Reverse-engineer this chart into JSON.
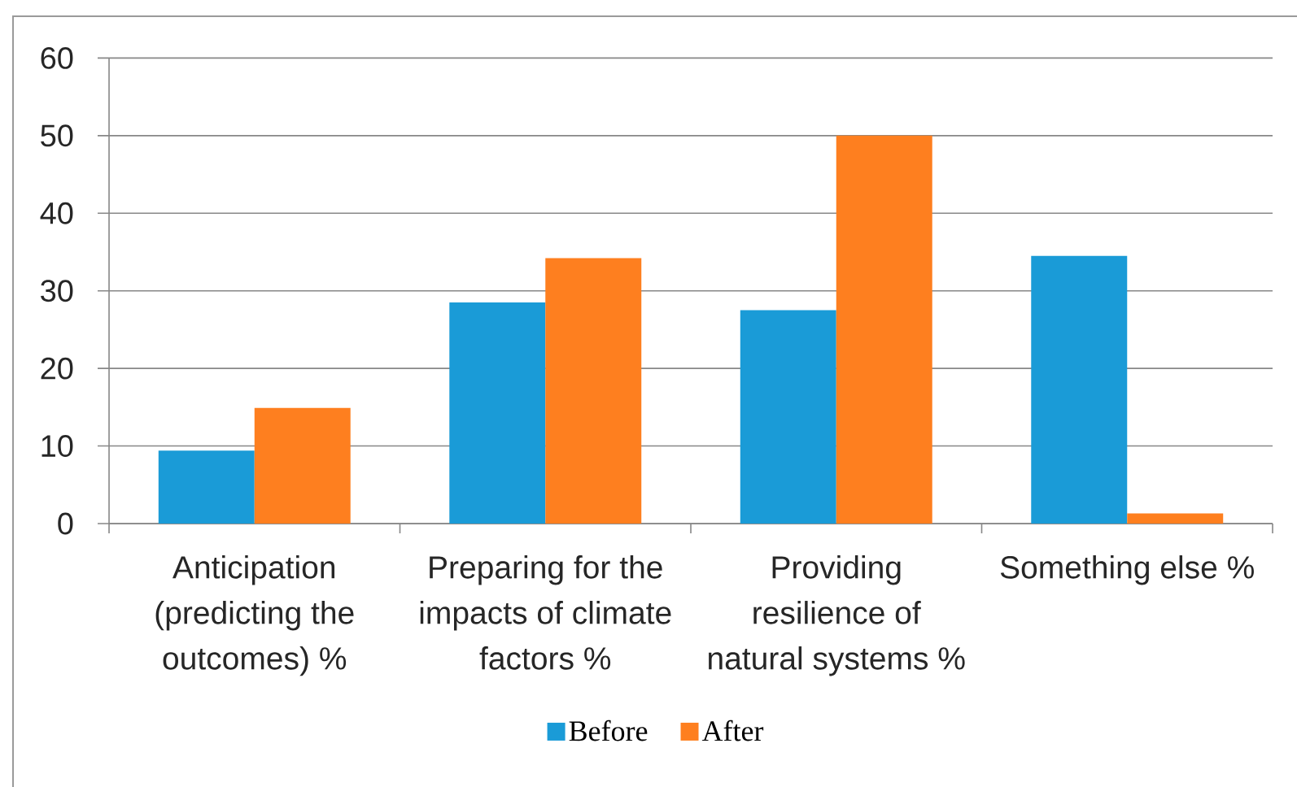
{
  "chart_data": {
    "type": "bar",
    "categories": [
      "Anticipation (predicting the outcomes) %",
      "Preparing for the impacts of climate factors %",
      "Providing resilience of natural systems %",
      "Something else %"
    ],
    "series": [
      {
        "name": "Before",
        "color": "#1a9bd7",
        "values": [
          9.4,
          28.5,
          27.5,
          34.5
        ]
      },
      {
        "name": "After",
        "color": "#fe7f1f",
        "values": [
          14.9,
          34.2,
          50,
          1.3
        ]
      }
    ],
    "ylim": [
      0,
      60
    ],
    "yticks": [
      0,
      10,
      20,
      30,
      40,
      50,
      60
    ],
    "grid": "y",
    "legend": "bottom"
  }
}
